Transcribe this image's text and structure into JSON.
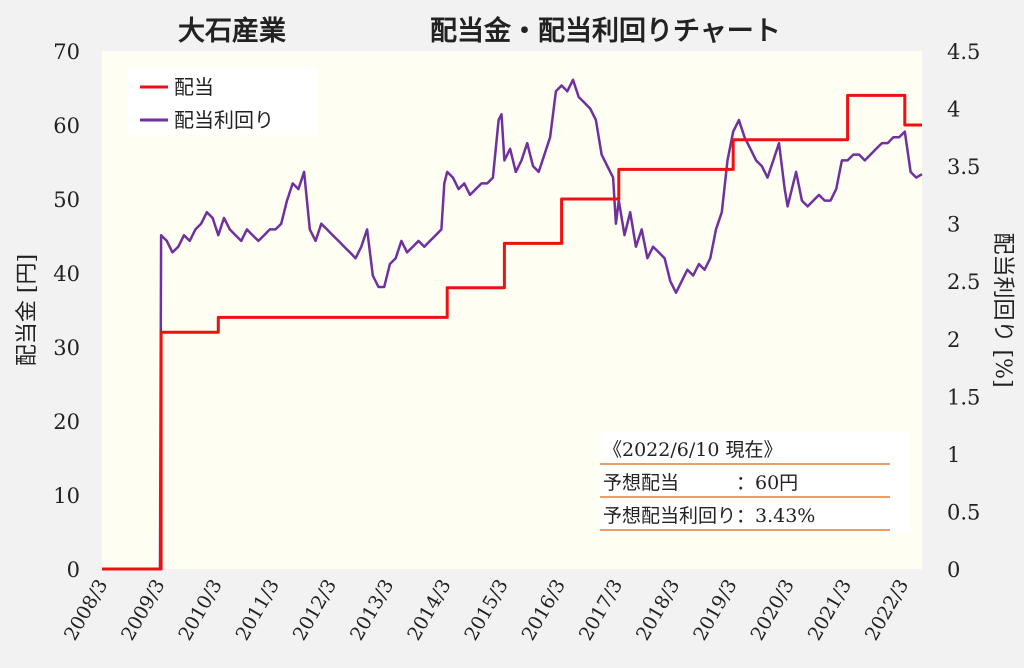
{
  "title": {
    "company": "大石産業",
    "main": "配当金・配当利回りチャート"
  },
  "colors": {
    "background": "#f2f2f2",
    "plot_background": "#fefef2",
    "dividend": "#ee1111",
    "yield": "#7030a0",
    "divider": "#e97d33"
  },
  "info_box": {
    "heading": "《2022/6/10 現在》",
    "rows": [
      {
        "label": "予想配当　　　：60円"
      },
      {
        "label": "予想配当利回り：3.43%"
      }
    ]
  },
  "chart_data": {
    "type": "line",
    "xlabel": "",
    "ylabel": "配当金 [円]",
    "y2label": "配当利回り [%]",
    "ylim": [
      0,
      70
    ],
    "y2lim": [
      0,
      4.5
    ],
    "yticks": [
      0,
      10,
      20,
      30,
      40,
      50,
      60,
      70
    ],
    "y2ticks": [
      0,
      0.5,
      1,
      1.5,
      2,
      2.5,
      3,
      3.5,
      4,
      4.5
    ],
    "y2tick_labels": [
      "0",
      "0.5",
      "1",
      "1.5",
      "2",
      "2.5",
      "3",
      "3.5",
      "4",
      "4.5"
    ],
    "xlim": [
      2008.167,
      2022.5
    ],
    "x_categories": [
      "2008/3",
      "2009/3",
      "2010/3",
      "2011/3",
      "2012/3",
      "2013/3",
      "2014/3",
      "2015/3",
      "2016/3",
      "2017/3",
      "2018/3",
      "2019/3",
      "2020/3",
      "2021/3",
      "2022/3"
    ],
    "grid": false,
    "legend": "top-left",
    "series": [
      {
        "name": "配当",
        "axis": "left",
        "color": "#ee1111",
        "step": true,
        "x": [
          2008.167,
          2009.2,
          2009.2,
          2010.2,
          2010.2,
          2014.2,
          2014.2,
          2015.2,
          2015.2,
          2016.2,
          2016.2,
          2017.2,
          2017.2,
          2019.2,
          2019.2,
          2021.2,
          2021.2,
          2022.2,
          2022.2,
          2022.5
        ],
        "y": [
          0,
          0,
          32,
          32,
          34,
          34,
          38,
          38,
          44,
          44,
          50,
          50,
          54,
          54,
          58,
          58,
          64,
          64,
          60,
          60
        ]
      },
      {
        "name": "配当利回り",
        "axis": "right",
        "color": "#7030a0",
        "x": [
          2008.167,
          2009.18,
          2009.2,
          2009.3,
          2009.4,
          2009.5,
          2009.6,
          2009.7,
          2009.8,
          2009.9,
          2010.0,
          2010.1,
          2010.2,
          2010.3,
          2010.4,
          2010.5,
          2010.6,
          2010.7,
          2010.8,
          2010.9,
          2011.0,
          2011.1,
          2011.2,
          2011.3,
          2011.4,
          2011.5,
          2011.6,
          2011.7,
          2011.8,
          2011.9,
          2012.0,
          2012.1,
          2012.2,
          2012.3,
          2012.4,
          2012.5,
          2012.6,
          2012.7,
          2012.8,
          2012.9,
          2013.0,
          2013.1,
          2013.2,
          2013.3,
          2013.4,
          2013.5,
          2013.6,
          2013.7,
          2013.8,
          2013.9,
          2014.0,
          2014.1,
          2014.15,
          2014.2,
          2014.3,
          2014.4,
          2014.5,
          2014.6,
          2014.7,
          2014.8,
          2014.9,
          2015.0,
          2015.1,
          2015.15,
          2015.2,
          2015.3,
          2015.4,
          2015.5,
          2015.6,
          2015.7,
          2015.8,
          2015.9,
          2016.0,
          2016.1,
          2016.2,
          2016.3,
          2016.4,
          2016.5,
          2016.6,
          2016.7,
          2016.8,
          2016.9,
          2017.0,
          2017.1,
          2017.15,
          2017.2,
          2017.3,
          2017.4,
          2017.5,
          2017.6,
          2017.7,
          2017.8,
          2017.9,
          2018.0,
          2018.1,
          2018.2,
          2018.3,
          2018.4,
          2018.5,
          2018.6,
          2018.7,
          2018.8,
          2018.9,
          2019.0,
          2019.1,
          2019.2,
          2019.3,
          2019.4,
          2019.5,
          2019.6,
          2019.7,
          2019.8,
          2019.9,
          2020.0,
          2020.1,
          2020.15,
          2020.2,
          2020.3,
          2020.4,
          2020.5,
          2020.6,
          2020.7,
          2020.8,
          2020.9,
          2021.0,
          2021.1,
          2021.2,
          2021.3,
          2021.4,
          2021.5,
          2021.6,
          2021.7,
          2021.8,
          2021.9,
          2022.0,
          2022.1,
          2022.2,
          2022.3,
          2022.4,
          2022.5
        ],
        "y": [
          0,
          0,
          2.9,
          2.85,
          2.75,
          2.8,
          2.9,
          2.85,
          2.95,
          3.0,
          3.1,
          3.05,
          2.9,
          3.05,
          2.95,
          2.9,
          2.85,
          2.95,
          2.9,
          2.85,
          2.9,
          2.95,
          2.95,
          3.0,
          3.2,
          3.35,
          3.3,
          3.45,
          2.95,
          2.85,
          3.0,
          2.95,
          2.9,
          2.85,
          2.8,
          2.75,
          2.7,
          2.8,
          2.95,
          2.55,
          2.45,
          2.45,
          2.65,
          2.7,
          2.85,
          2.75,
          2.8,
          2.85,
          2.8,
          2.85,
          2.9,
          2.95,
          3.35,
          3.45,
          3.4,
          3.3,
          3.35,
          3.25,
          3.3,
          3.35,
          3.35,
          3.4,
          3.9,
          3.95,
          3.55,
          3.65,
          3.45,
          3.55,
          3.7,
          3.5,
          3.45,
          3.6,
          3.75,
          4.15,
          4.2,
          4.15,
          4.25,
          4.1,
          4.05,
          4.0,
          3.9,
          3.6,
          3.5,
          3.4,
          3.0,
          3.2,
          2.9,
          3.1,
          2.8,
          2.95,
          2.7,
          2.8,
          2.75,
          2.7,
          2.5,
          2.4,
          2.5,
          2.6,
          2.55,
          2.65,
          2.6,
          2.7,
          2.95,
          3.1,
          3.55,
          3.8,
          3.9,
          3.75,
          3.65,
          3.55,
          3.5,
          3.4,
          3.55,
          3.7,
          3.3,
          3.15,
          3.25,
          3.45,
          3.2,
          3.15,
          3.2,
          3.25,
          3.2,
          3.2,
          3.3,
          3.55,
          3.55,
          3.6,
          3.6,
          3.55,
          3.6,
          3.65,
          3.7,
          3.7,
          3.75,
          3.75,
          3.8,
          3.45,
          3.4,
          3.43
        ]
      }
    ]
  }
}
